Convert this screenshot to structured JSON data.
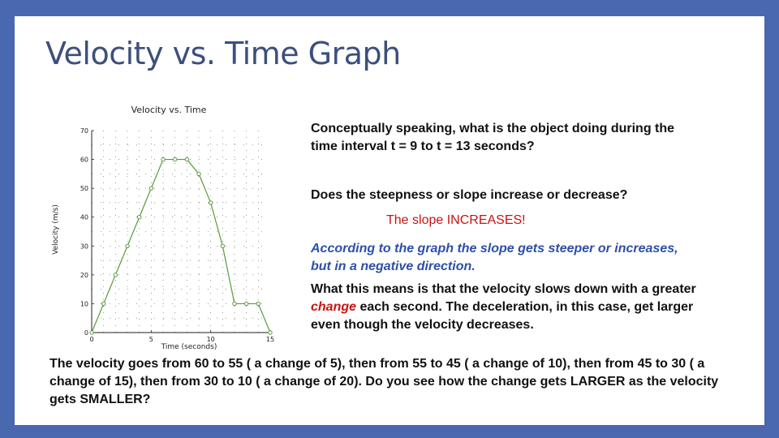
{
  "slide": {
    "title": "Velocity vs. Time Graph"
  },
  "text": {
    "question1": "Conceptually speaking, what is the object doing during the time interval t = 9 to t = 13 seconds?",
    "question2": "Does the steepness or slope increase or decrease?",
    "answer": "The slope INCREASES!",
    "italic_note": "According to the graph the slope gets steeper or increases, but in a negative direction.",
    "explain_part1": "What this means is that the velocity slows down with a greater ",
    "explain_highlight": "change",
    "explain_part2": " each second. The deceleration, in this case, get larger even though the velocity decreases.",
    "summary": "The velocity goes from 60 to 55 ( a change of 5), then from 55 to 45 ( a change of 10), then from 45 to 30 ( a change of 15), then from 30 to 10 ( a change of 20). Do you see how the change gets LARGER as the velocity gets SMALLER?"
  },
  "colors": {
    "background": "#4a68b0",
    "title": "#3d4f7c",
    "series": "#5a9a3c",
    "answer": "#cc1111",
    "italic_note": "#2e4fa8"
  },
  "chart_data": {
    "type": "line",
    "title": "Velocity vs. Time",
    "xlabel": "Time (seconds)",
    "ylabel": "Velocity (m/s)",
    "xlim": [
      0,
      15
    ],
    "ylim": [
      0,
      70
    ],
    "x_ticks": [
      0,
      5,
      10,
      15
    ],
    "x_tick_labels": [
      "0",
      "5",
      "10",
      "15"
    ],
    "y_ticks": [
      0,
      10,
      20,
      30,
      40,
      50,
      60,
      70
    ],
    "y_tick_labels": [
      "0",
      "10",
      "20",
      "30",
      "40",
      "50",
      "60",
      "70"
    ],
    "grid": true,
    "series": [
      {
        "x": [
          0,
          1,
          2,
          3,
          4,
          5,
          6,
          7,
          8,
          9,
          10,
          11,
          12,
          13,
          14,
          15
        ],
        "y": [
          0,
          10,
          20,
          30,
          40,
          50,
          60,
          60,
          60,
          55,
          45,
          30,
          10,
          10,
          10,
          0
        ]
      }
    ]
  }
}
